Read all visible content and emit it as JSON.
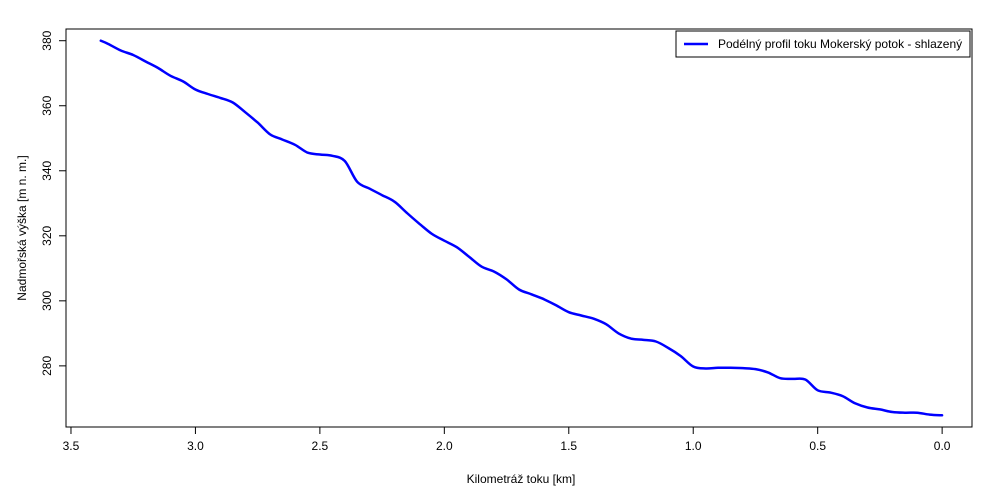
{
  "chart_data": {
    "type": "line",
    "xlabel": "Kilometráž toku [km]",
    "ylabel": "Nadmořská výška [m n. m.]",
    "xlim": [
      3.52,
      -0.12
    ],
    "ylim": [
      261.2,
      383.6
    ],
    "x_ticks": [
      3.5,
      3.0,
      2.5,
      2.0,
      1.5,
      1.0,
      0.5,
      0.0
    ],
    "x_tick_labels": [
      "3.5",
      "3.0",
      "2.5",
      "2.0",
      "1.5",
      "1.0",
      "0.5",
      "0.0"
    ],
    "y_ticks": [
      280,
      300,
      320,
      340,
      360,
      380
    ],
    "y_tick_labels": [
      "280",
      "300",
      "320",
      "340",
      "360",
      "380"
    ],
    "grid": false,
    "legend_position": "top-right",
    "colors": {
      "series": "#0000ff",
      "axis": "#000000"
    },
    "series": [
      {
        "name": "Podélný profil toku Mokerský potok - shlazený",
        "color": "#0000ff",
        "x": [
          3.38,
          3.35,
          3.3,
          3.25,
          3.2,
          3.15,
          3.1,
          3.05,
          3.0,
          2.95,
          2.9,
          2.85,
          2.8,
          2.75,
          2.7,
          2.65,
          2.6,
          2.55,
          2.5,
          2.45,
          2.4,
          2.35,
          2.3,
          2.25,
          2.2,
          2.15,
          2.1,
          2.05,
          2.0,
          1.95,
          1.9,
          1.85,
          1.8,
          1.75,
          1.7,
          1.65,
          1.6,
          1.55,
          1.5,
          1.45,
          1.4,
          1.35,
          1.3,
          1.25,
          1.2,
          1.15,
          1.1,
          1.05,
          1.0,
          0.95,
          0.9,
          0.85,
          0.8,
          0.75,
          0.7,
          0.65,
          0.6,
          0.55,
          0.5,
          0.45,
          0.4,
          0.35,
          0.3,
          0.25,
          0.2,
          0.15,
          0.1,
          0.05,
          0.0
        ],
        "y": [
          380.0,
          379.0,
          377.0,
          375.6,
          373.6,
          371.6,
          369.2,
          367.5,
          365.0,
          363.6,
          362.4,
          361.0,
          358.0,
          354.8,
          351.2,
          349.6,
          348.0,
          345.6,
          345.0,
          344.6,
          343.0,
          336.6,
          334.5,
          332.5,
          330.5,
          327.0,
          323.7,
          320.6,
          318.5,
          316.5,
          313.5,
          310.5,
          309.0,
          306.6,
          303.5,
          302.0,
          300.5,
          298.6,
          296.5,
          295.5,
          294.5,
          292.8,
          290.0,
          288.4,
          288.0,
          287.5,
          285.5,
          283.0,
          279.8,
          279.2,
          279.4,
          279.4,
          279.3,
          279.0,
          278.0,
          276.2,
          276.0,
          275.8,
          272.5,
          271.8,
          270.7,
          268.5,
          267.2,
          266.6,
          265.8,
          265.6,
          265.6,
          265.0,
          264.8
        ]
      }
    ]
  }
}
